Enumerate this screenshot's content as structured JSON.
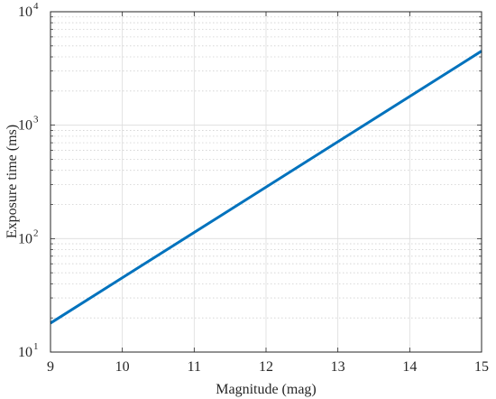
{
  "chart_data": {
    "type": "line",
    "title": "",
    "xlabel": "Magnitude (mag)",
    "ylabel": "Exposure time (ms)",
    "xlim": [
      9,
      15
    ],
    "ylim": [
      10,
      10000
    ],
    "y_scale": "log",
    "grid": true,
    "minor_grid": true,
    "x_ticks": [
      9,
      10,
      11,
      12,
      13,
      14,
      15
    ],
    "x_tick_labels": [
      "9",
      "10",
      "11",
      "12",
      "13",
      "14",
      "15"
    ],
    "y_ticks": [
      10,
      100,
      1000,
      10000
    ],
    "y_tick_labels": [
      {
        "base": "10",
        "exp": "1"
      },
      {
        "base": "10",
        "exp": "2"
      },
      {
        "base": "10",
        "exp": "3"
      },
      {
        "base": "10",
        "exp": "4"
      }
    ],
    "series": [
      {
        "color": "#0072BD",
        "x": [
          9,
          15
        ],
        "y": [
          18,
          4500
        ]
      }
    ]
  }
}
